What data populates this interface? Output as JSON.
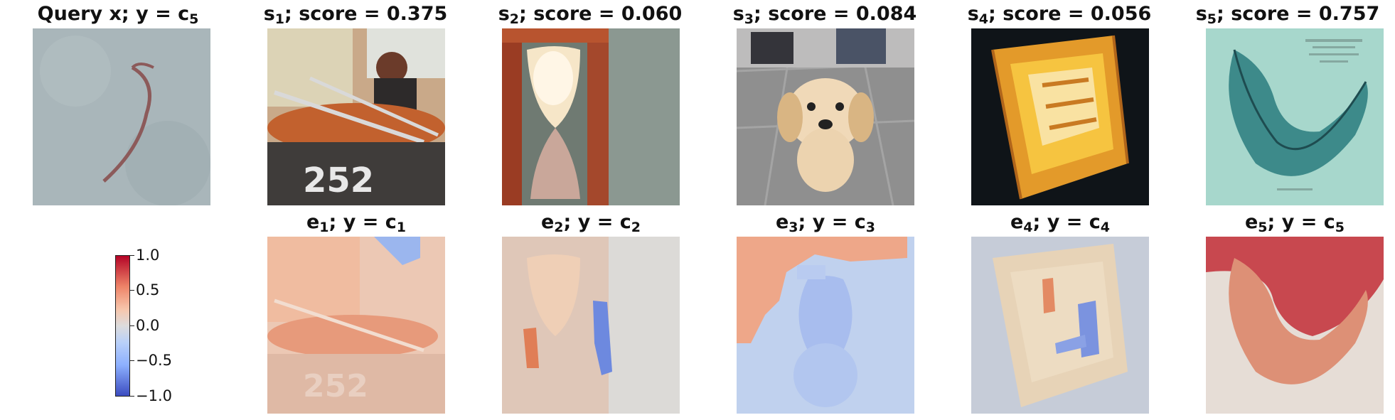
{
  "figure": {
    "query": {
      "title": "Query x; y = c",
      "sub": "5"
    },
    "samples": [
      {
        "label": "s",
        "sub": "1",
        "score_text": "; score = 0.375",
        "score": 0.375
      },
      {
        "label": "s",
        "sub": "2",
        "score_text": "; score = 0.060",
        "score": 0.06
      },
      {
        "label": "s",
        "sub": "3",
        "score_text": "; score = 0.084",
        "score": 0.084
      },
      {
        "label": "s",
        "sub": "4",
        "score_text": "; score = 0.056",
        "score": 0.056
      },
      {
        "label": "s",
        "sub": "5",
        "score_text": "; score = 0.757",
        "score": 0.757
      }
    ],
    "explanations": [
      {
        "label": "e",
        "sub": "1",
        "mid": "; y = c",
        "csub": "1"
      },
      {
        "label": "e",
        "sub": "2",
        "mid": "; y = c",
        "csub": "2"
      },
      {
        "label": "e",
        "sub": "3",
        "mid": "; y = c",
        "csub": "3"
      },
      {
        "label": "e",
        "sub": "4",
        "mid": "; y = c",
        "csub": "4"
      },
      {
        "label": "e",
        "sub": "5",
        "mid": "; y = c",
        "csub": "5"
      }
    ],
    "colorbar": {
      "ticks": [
        "1.0",
        "0.5",
        "0.0",
        "−0.5",
        "−1.0"
      ],
      "colormap": "coolwarm",
      "colors": {
        "high": "#b40426",
        "mid": "#dddcdc",
        "low": "#3b4cc0"
      }
    },
    "image_subjects": [
      "worm-on-ground",
      "cart-with-ropes",
      "hourglass",
      "puppy",
      "wooden-box",
      "seed-pod-illustration"
    ]
  }
}
